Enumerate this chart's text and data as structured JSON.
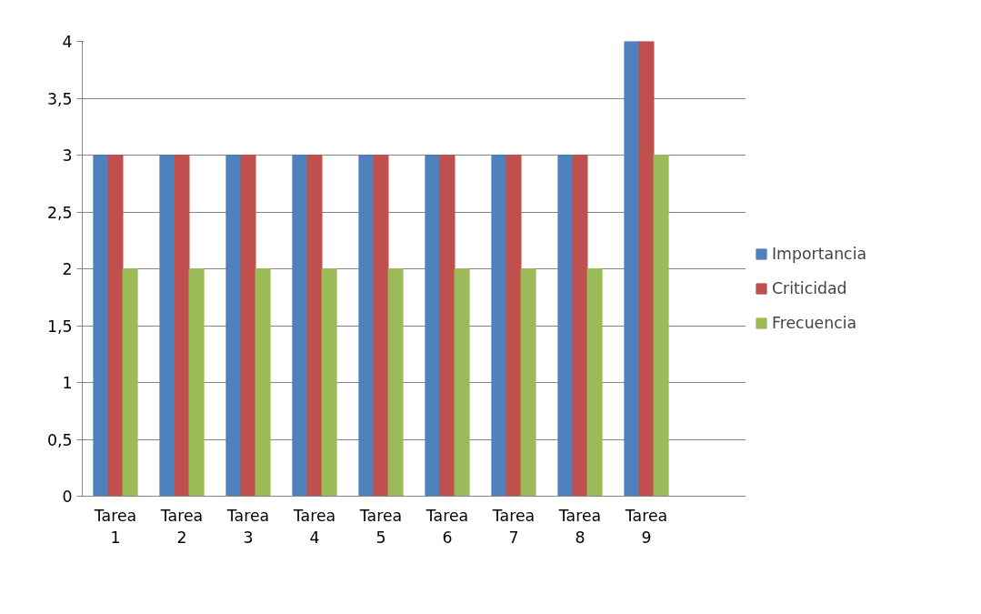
{
  "chart_data": {
    "type": "bar",
    "categories": [
      "Tarea 1",
      "Tarea 2",
      "Tarea 3",
      "Tarea 4",
      "Tarea 5",
      "Tarea 6",
      "Tarea 7",
      "Tarea 8",
      "Tarea 9",
      null
    ],
    "series": [
      {
        "name": "Importancia",
        "color": "#4f81bd",
        "values": [
          3,
          3,
          3,
          3,
          3,
          3,
          3,
          3,
          4,
          null
        ]
      },
      {
        "name": "Criticidad",
        "color": "#c0504d",
        "values": [
          3,
          3,
          3,
          3,
          3,
          3,
          3,
          3,
          4,
          null
        ]
      },
      {
        "name": "Frecuencia",
        "color": "#9bbb59",
        "values": [
          2,
          2,
          2,
          2,
          2,
          2,
          2,
          2,
          3,
          null
        ]
      }
    ],
    "ylim": [
      0,
      4
    ],
    "yticks": [
      0,
      {
        "value": 0.5,
        "label": "0,5"
      },
      1,
      {
        "value": 1.5,
        "label": "1,5"
      },
      2,
      {
        "value": 2.5,
        "label": "2,5"
      },
      3,
      {
        "value": 3.5,
        "label": "3,5"
      },
      4
    ],
    "grid": "y",
    "legend": "right"
  }
}
